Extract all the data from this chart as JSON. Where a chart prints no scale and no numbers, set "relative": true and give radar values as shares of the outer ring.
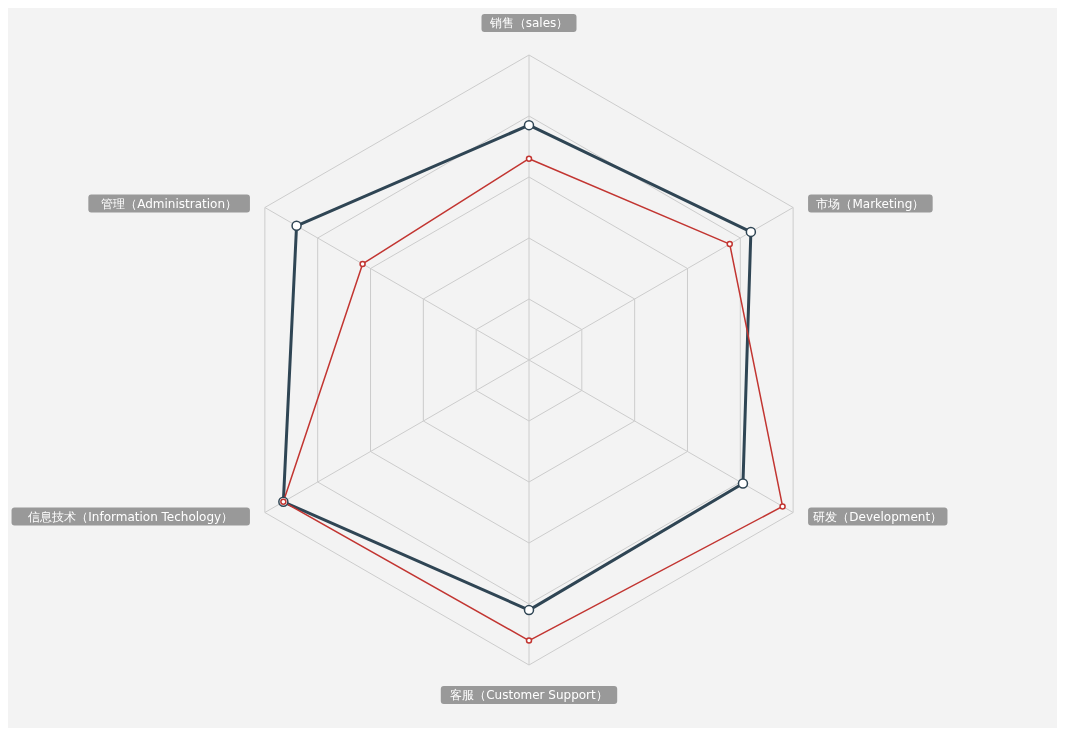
{
  "chart_data": {
    "type": "radar",
    "relative": true,
    "grid": true,
    "marker": "circle",
    "line_style": "solid",
    "categories": [
      "销售（sales）",
      "市场（Marketing）",
      "研发（Development）",
      "客服（Customer Support）",
      "信息技术（Information Techology）",
      "管理（Administration）"
    ],
    "series": [
      {
        "color": "#2f4554",
        "values": [
          0.77,
          0.84,
          0.81,
          0.82,
          0.93,
          0.88
        ]
      },
      {
        "color": "#c23531",
        "values": [
          0.66,
          0.76,
          0.96,
          0.92,
          0.93,
          0.63
        ]
      }
    ]
  }
}
